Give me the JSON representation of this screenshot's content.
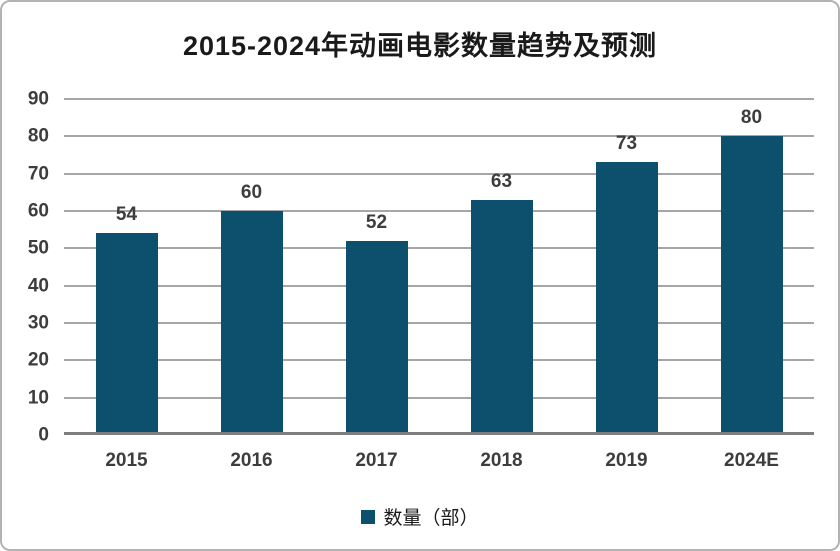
{
  "chart_data": {
    "type": "bar",
    "title": "2015-2024年动画电影数量趋势及预测",
    "categories": [
      "2015",
      "2016",
      "2017",
      "2018",
      "2019",
      "2024E"
    ],
    "values": [
      54,
      60,
      52,
      63,
      73,
      80
    ],
    "series_name": "数量（部）",
    "legend": "数量（部）",
    "xlabel": "",
    "ylabel": "",
    "ylim": [
      0,
      90
    ],
    "yticks": [
      0,
      10,
      20,
      30,
      40,
      50,
      60,
      70,
      80,
      90
    ],
    "grid": true,
    "legend_position": "bottom",
    "data_labels": true
  },
  "colors": {
    "bar": "#0d506e",
    "gridline": "#a6a6a6",
    "axis_line": "#7f7f7f",
    "title_text": "#1a1a1a",
    "label_text": "#3d3d3d",
    "frame_border": "#b3b3b3",
    "background": "#ffffff"
  }
}
